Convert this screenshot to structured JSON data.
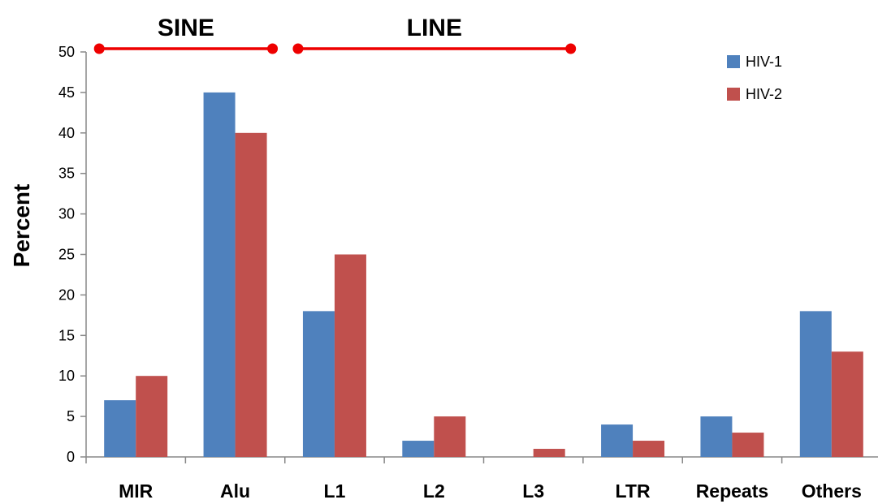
{
  "chart_data": {
    "type": "bar",
    "title": "",
    "xlabel": "",
    "ylabel": "Percent",
    "ylim": [
      0,
      50
    ],
    "yticks": [
      0,
      5,
      10,
      15,
      20,
      25,
      30,
      35,
      40,
      45,
      50
    ],
    "categories": [
      "MIR",
      "Alu",
      "L1",
      "L2",
      "L3",
      "LTR",
      "Repeats",
      "Others"
    ],
    "series": [
      {
        "name": "HIV-1",
        "color": "#4f81bd",
        "values": [
          7,
          45,
          18,
          2,
          0,
          4,
          5,
          18
        ]
      },
      {
        "name": "HIV-2",
        "color": "#c0504d",
        "values": [
          10,
          40,
          25,
          5,
          1,
          2,
          3,
          13
        ]
      }
    ],
    "grid": false,
    "legend_position": "top-right",
    "annotations": [
      {
        "label": "SINE",
        "from_category": "MIR",
        "to_category": "Alu",
        "color": "#ee0000"
      },
      {
        "label": "LINE",
        "from_category": "L1",
        "to_category": "L3",
        "color": "#ee0000"
      }
    ]
  }
}
